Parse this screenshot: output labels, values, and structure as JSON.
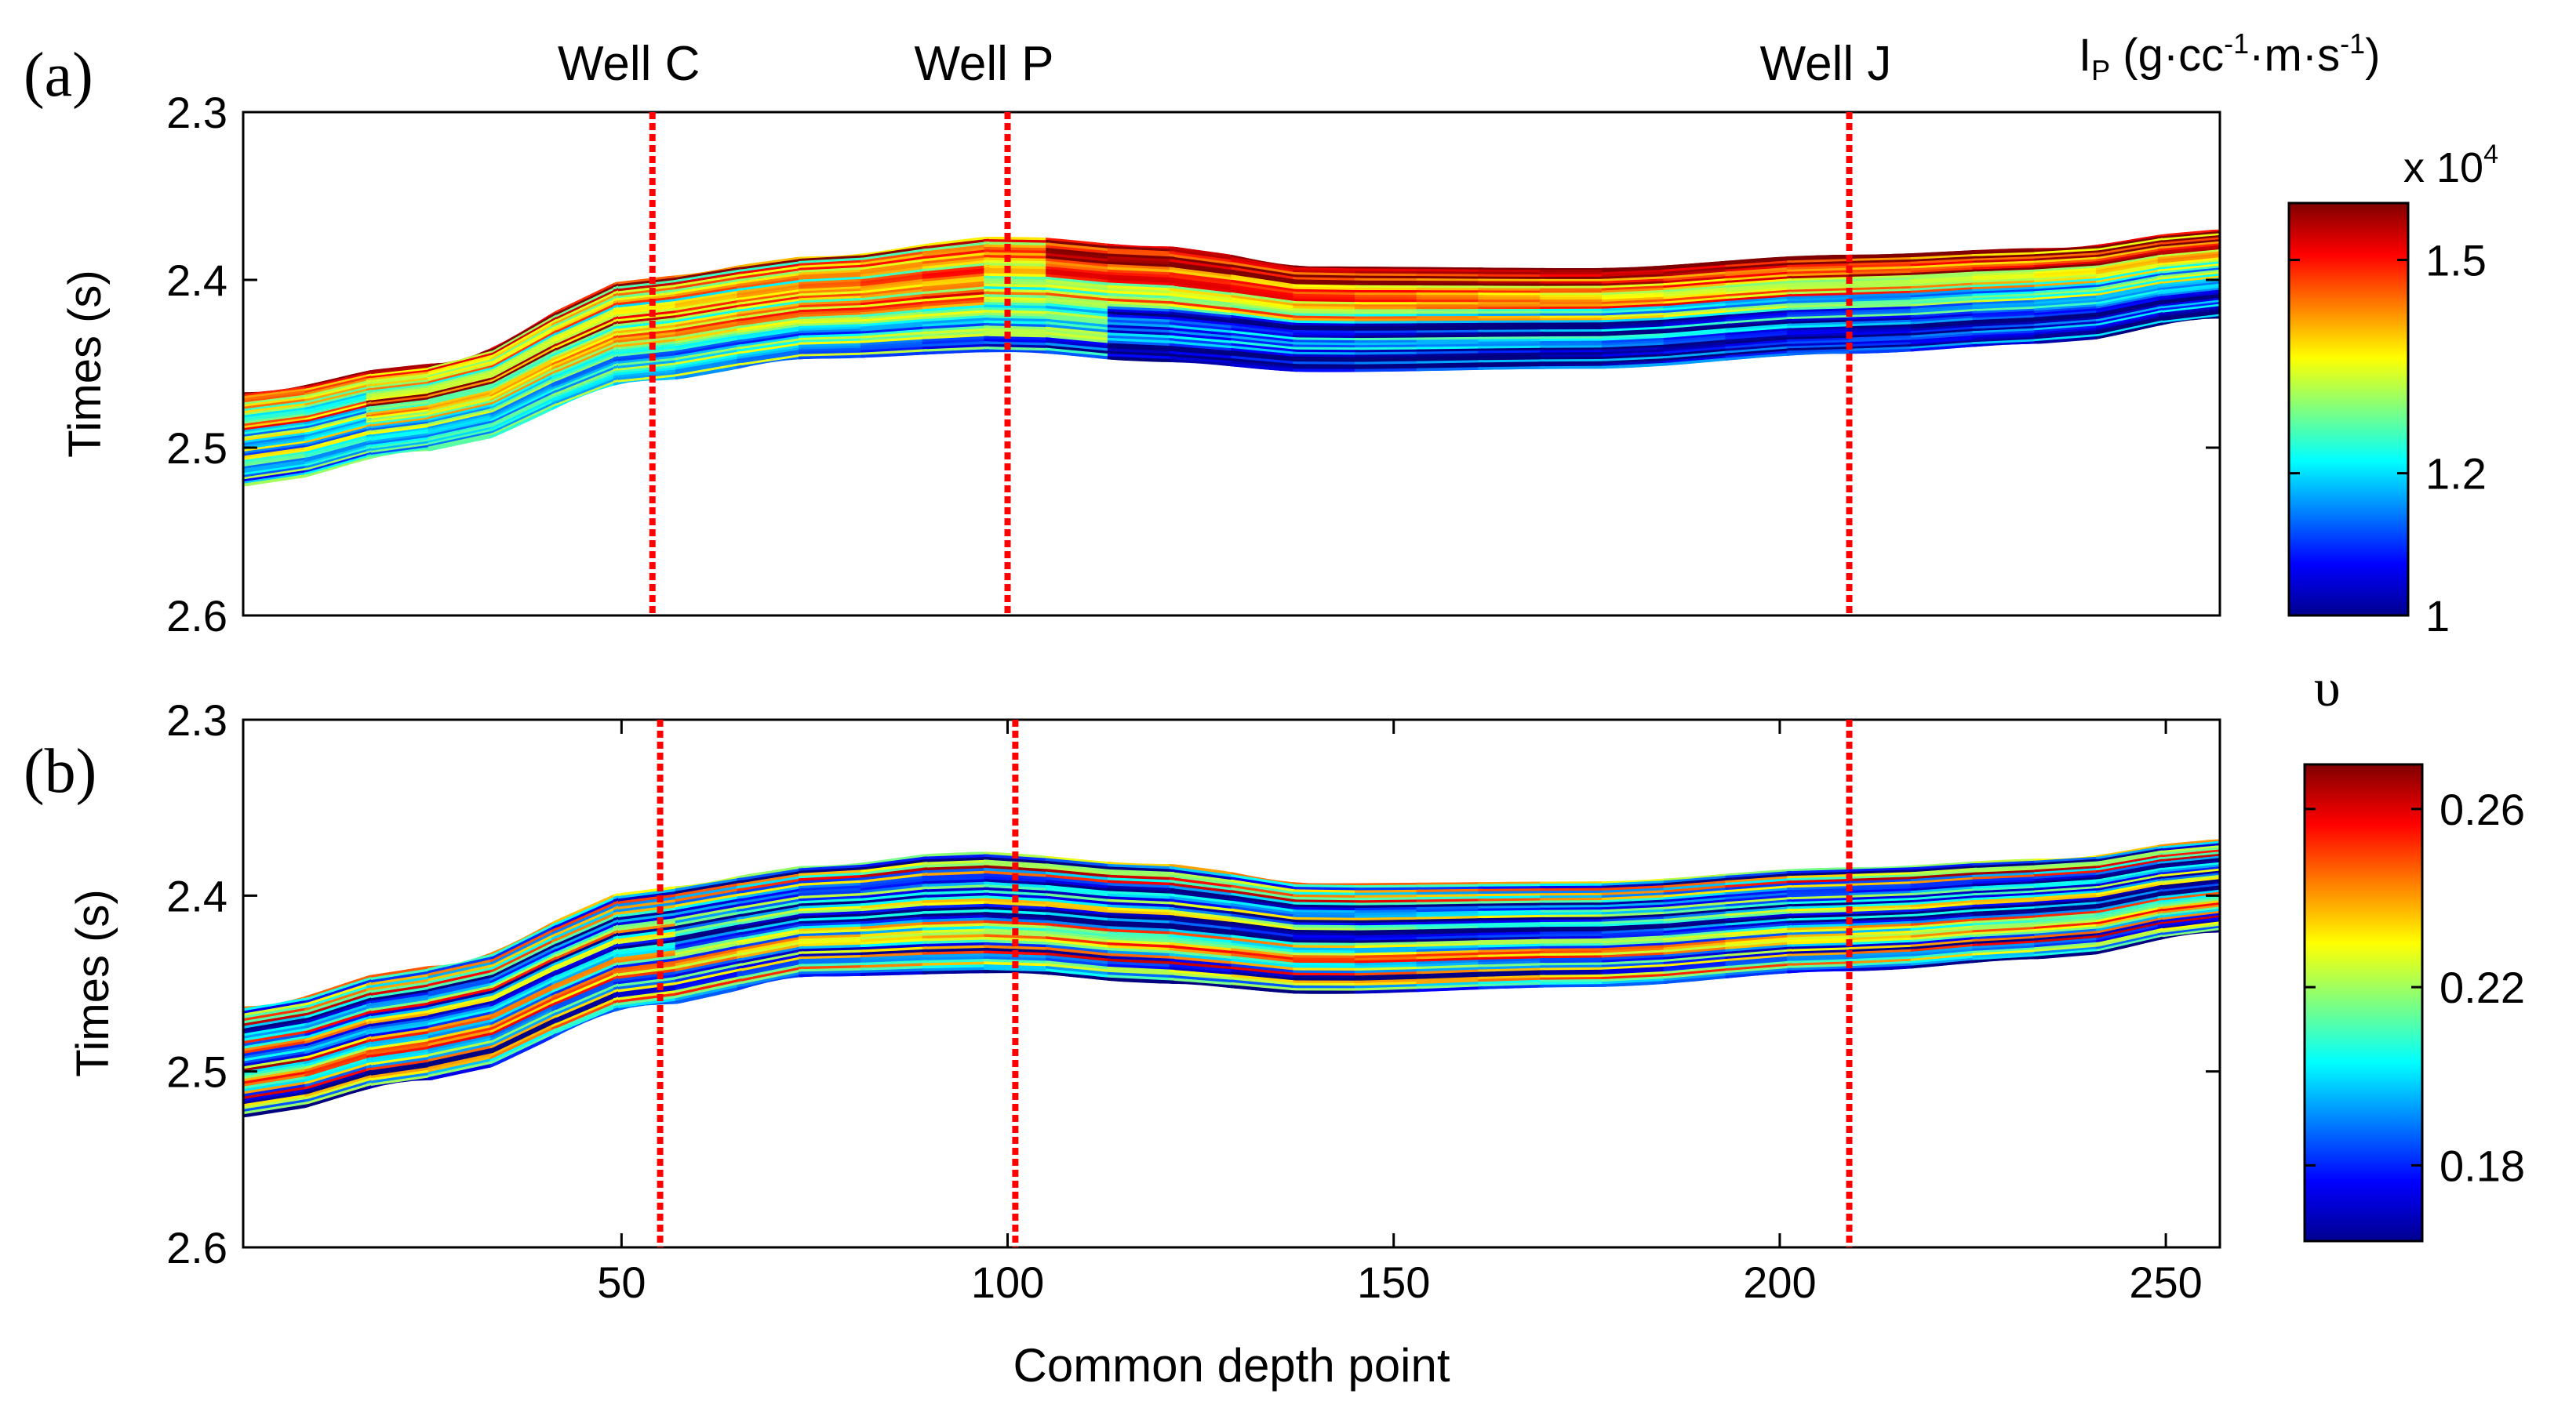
{
  "chart_data": [
    {
      "type": "heatmap",
      "panel_label": "(a)",
      "quantity": "acoustic impedance I_P",
      "colorbar_unit_prefix": "I",
      "colorbar_unit_sub": "P",
      "colorbar_unit_text": " (g·cc",
      "colorbar_unit_exp1": "-1",
      "colorbar_unit_mid": "·m·s",
      "colorbar_unit_exp2": "-1",
      "colorbar_unit_close": ")",
      "colorbar_multiplier_prefix": "x 10",
      "colorbar_multiplier_exp": "4",
      "colorbar_range": [
        1.0,
        1.58
      ],
      "colorbar_ticks": [
        {
          "value": 1.0,
          "label": "1"
        },
        {
          "value": 1.2,
          "label": "1.2"
        },
        {
          "value": 1.5,
          "label": "1.5"
        }
      ],
      "ylabel": "Times (s)",
      "ylim": [
        2.3,
        2.6
      ],
      "yticks": [
        {
          "value": 2.3,
          "label": "2.3"
        },
        {
          "value": 2.4,
          "label": "2.4"
        },
        {
          "value": 2.5,
          "label": "2.5"
        },
        {
          "value": 2.6,
          "label": "2.6"
        }
      ],
      "xlim": [
        1,
        257
      ],
      "wells": [
        {
          "name": "Well C",
          "cdp": 54
        },
        {
          "name": "Well P",
          "cdp": 100
        },
        {
          "name": "Well J",
          "cdp": 209
        }
      ],
      "horizon_top": {
        "cdp": [
          1,
          25,
          54,
          75,
          100,
          120,
          140,
          175,
          209,
          235,
          257
        ],
        "time": [
          2.467,
          2.45,
          2.398,
          2.386,
          2.374,
          2.38,
          2.392,
          2.393,
          2.385,
          2.381,
          2.37
        ]
      },
      "horizon_bottom": {
        "cdp": [
          1,
          25,
          54,
          75,
          100,
          120,
          140,
          175,
          209,
          235,
          257
        ],
        "time": [
          2.523,
          2.502,
          2.46,
          2.447,
          2.443,
          2.449,
          2.455,
          2.453,
          2.444,
          2.438,
          2.423
        ]
      }
    },
    {
      "type": "heatmap",
      "panel_label": "(b)",
      "quantity": "Poisson's ratio",
      "colorbar_symbol": "υ",
      "colorbar_range": [
        0.163,
        0.27
      ],
      "colorbar_ticks": [
        {
          "value": 0.18,
          "label": "0.18"
        },
        {
          "value": 0.22,
          "label": "0.22"
        },
        {
          "value": 0.26,
          "label": "0.26"
        }
      ],
      "ylabel": "Times (s)",
      "ylim": [
        2.3,
        2.6
      ],
      "yticks": [
        {
          "value": 2.3,
          "label": "2.3"
        },
        {
          "value": 2.4,
          "label": "2.4"
        },
        {
          "value": 2.5,
          "label": "2.5"
        },
        {
          "value": 2.6,
          "label": "2.6"
        }
      ],
      "xlabel": "Common depth point",
      "xlim": [
        1,
        257
      ],
      "xticks": [
        {
          "value": 50,
          "label": "50"
        },
        {
          "value": 100,
          "label": "100"
        },
        {
          "value": 150,
          "label": "150"
        },
        {
          "value": 200,
          "label": "200"
        },
        {
          "value": 250,
          "label": "250"
        }
      ],
      "wells": [
        {
          "name": "Well C",
          "cdp": 55
        },
        {
          "name": "Well P",
          "cdp": 101
        },
        {
          "name": "Well J",
          "cdp": 209
        }
      ],
      "horizon_top": {
        "cdp": [
          1,
          25,
          55,
          75,
          95,
          120,
          140,
          175,
          209,
          235,
          257
        ],
        "time": [
          2.463,
          2.44,
          2.395,
          2.383,
          2.375,
          2.382,
          2.393,
          2.392,
          2.384,
          2.379,
          2.368
        ]
      },
      "horizon_bottom": {
        "cdp": [
          1,
          25,
          55,
          75,
          100,
          120,
          140,
          175,
          209,
          235,
          257
        ],
        "time": [
          2.526,
          2.505,
          2.462,
          2.446,
          2.444,
          2.45,
          2.456,
          2.452,
          2.443,
          2.436,
          2.421
        ]
      }
    }
  ]
}
